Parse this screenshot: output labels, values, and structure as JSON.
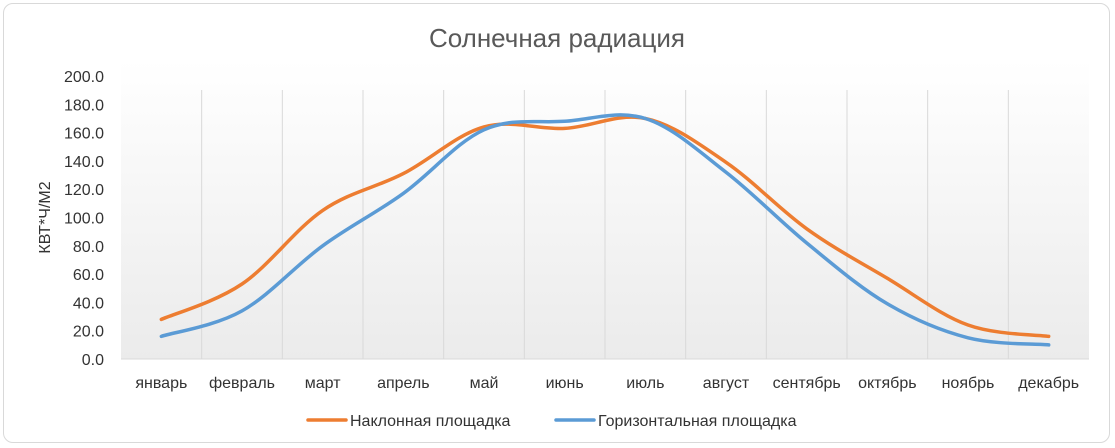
{
  "chart_data": {
    "type": "line",
    "title": "Солнечная радиация",
    "ylabel": "КВТ*Ч/М2",
    "xlabel": "",
    "categories": [
      "январь",
      "февраль",
      "март",
      "апрель",
      "май",
      "июнь",
      "июль",
      "август",
      "сентябрь",
      "октябрь",
      "ноябрь",
      "декабрь"
    ],
    "ylim": [
      0,
      200
    ],
    "yticks": [
      "0.0",
      "20.0",
      "40.0",
      "60.0",
      "80.0",
      "100.0",
      "120.0",
      "140.0",
      "160.0",
      "180.0",
      "200.0"
    ],
    "series": [
      {
        "name": "Наклонная площадка",
        "color": "#ED7D31",
        "values": [
          28,
          53,
          105,
          131,
          164,
          163,
          170,
          139,
          92,
          57,
          24,
          16
        ]
      },
      {
        "name": "Горизонтальная площадка",
        "color": "#5B9BD5",
        "values": [
          16,
          34,
          80,
          117,
          162,
          168,
          170,
          132,
          82,
          39,
          15,
          10
        ]
      }
    ],
    "grid": "vertical",
    "legend": "bottom"
  }
}
